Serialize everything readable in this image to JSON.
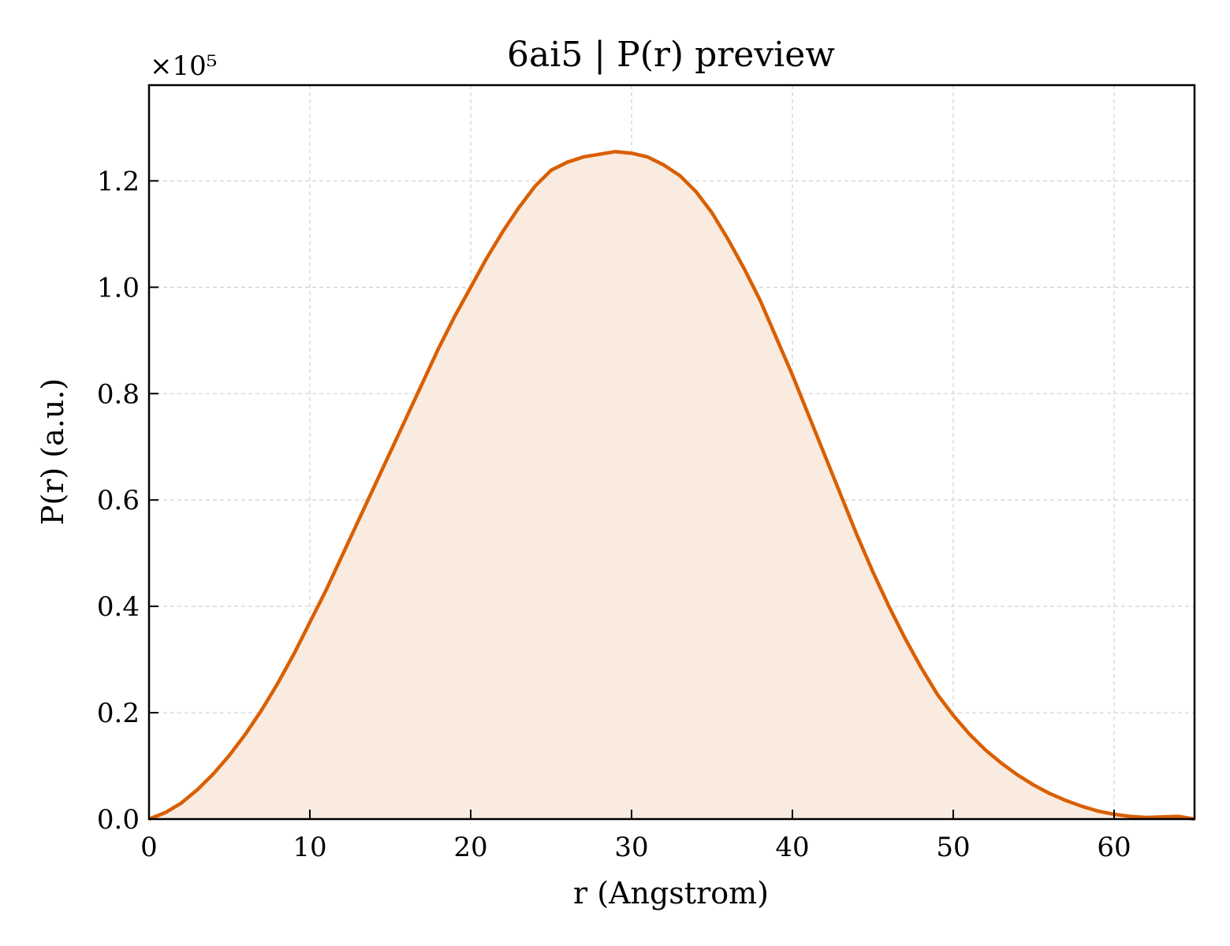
{
  "chart_data": {
    "type": "area",
    "title": "6ai5 | P(r) preview",
    "xlabel": "r (Angstrom)",
    "ylabel": "P(r) (a.u.)",
    "y_multiplier_label": "×10⁵",
    "xlim": [
      0,
      65
    ],
    "ylim": [
      0,
      1.38
    ],
    "x_ticks": [
      0,
      10,
      20,
      30,
      40,
      50,
      60
    ],
    "x_tick_labels": [
      "0",
      "10",
      "20",
      "30",
      "40",
      "50",
      "60"
    ],
    "y_ticks": [
      0.0,
      0.2,
      0.4,
      0.6,
      0.8,
      1.0,
      1.2
    ],
    "y_tick_labels": [
      "0.0",
      "0.2",
      "0.4",
      "0.6",
      "0.8",
      "1.0",
      "1.2"
    ],
    "grid": true,
    "line_color": "#d95f02",
    "fill_color": "#f9ebe0",
    "series": [
      {
        "x": [
          0,
          1,
          2,
          3,
          4,
          5,
          6,
          7,
          8,
          9,
          10,
          11,
          12,
          13,
          14,
          15,
          16,
          17,
          18,
          19,
          20,
          21,
          22,
          23,
          24,
          25,
          26,
          27,
          28,
          29,
          30,
          31,
          32,
          33,
          34,
          35,
          36,
          37,
          38,
          39,
          40,
          41,
          42,
          43,
          44,
          45,
          46,
          47,
          48,
          49,
          50,
          51,
          52,
          53,
          54,
          55,
          56,
          57,
          58,
          59,
          60,
          61,
          62,
          63,
          64,
          65
        ],
        "values": [
          0.0,
          0.012,
          0.03,
          0.055,
          0.085,
          0.12,
          0.16,
          0.205,
          0.255,
          0.31,
          0.37,
          0.43,
          0.495,
          0.56,
          0.625,
          0.69,
          0.755,
          0.82,
          0.885,
          0.945,
          1.0,
          1.055,
          1.105,
          1.15,
          1.19,
          1.22,
          1.235,
          1.245,
          1.25,
          1.255,
          1.252,
          1.245,
          1.23,
          1.21,
          1.18,
          1.14,
          1.09,
          1.035,
          0.975,
          0.905,
          0.835,
          0.76,
          0.685,
          0.61,
          0.535,
          0.465,
          0.4,
          0.34,
          0.285,
          0.235,
          0.195,
          0.16,
          0.13,
          0.105,
          0.083,
          0.064,
          0.048,
          0.035,
          0.024,
          0.015,
          0.009,
          0.005,
          0.003,
          0.004,
          0.005,
          0.0
        ]
      }
    ]
  }
}
